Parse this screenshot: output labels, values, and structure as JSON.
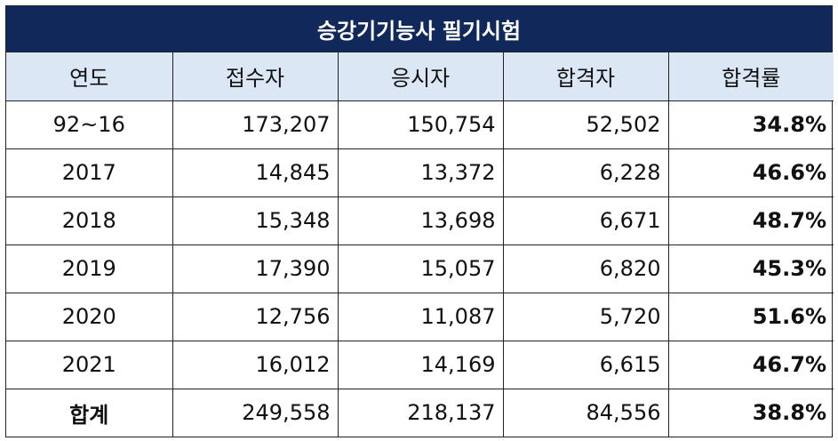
{
  "title": "승강기기능사 필기시험",
  "headers": [
    "연도",
    "접수자",
    "응시자",
    "합격자",
    "합격률"
  ],
  "rows": [
    {
      "year": "92~16",
      "applicants": "173,207",
      "examinees": "150,754",
      "passers": "52,502",
      "rate": "34.8%"
    },
    {
      "year": "2017",
      "applicants": "14,845",
      "examinees": "13,372",
      "passers": "6,228",
      "rate": "46.6%"
    },
    {
      "year": "2018",
      "applicants": "15,348",
      "examinees": "13,698",
      "passers": "6,671",
      "rate": "48.7%"
    },
    {
      "year": "2019",
      "applicants": "17,390",
      "examinees": "15,057",
      "passers": "6,820",
      "rate": "45.3%"
    },
    {
      "year": "2020",
      "applicants": "12,756",
      "examinees": "11,087",
      "passers": "5,720",
      "rate": "51.6%"
    },
    {
      "year": "2021",
      "applicants": "16,012",
      "examinees": "14,169",
      "passers": "6,615",
      "rate": "46.7%"
    }
  ],
  "total": {
    "year": "합계",
    "applicants": "249,558",
    "examinees": "218,137",
    "passers": "84,556",
    "rate": "38.8%"
  },
  "colors": {
    "title_bg": "#10285a",
    "header_bg": "#dbe7f4"
  }
}
